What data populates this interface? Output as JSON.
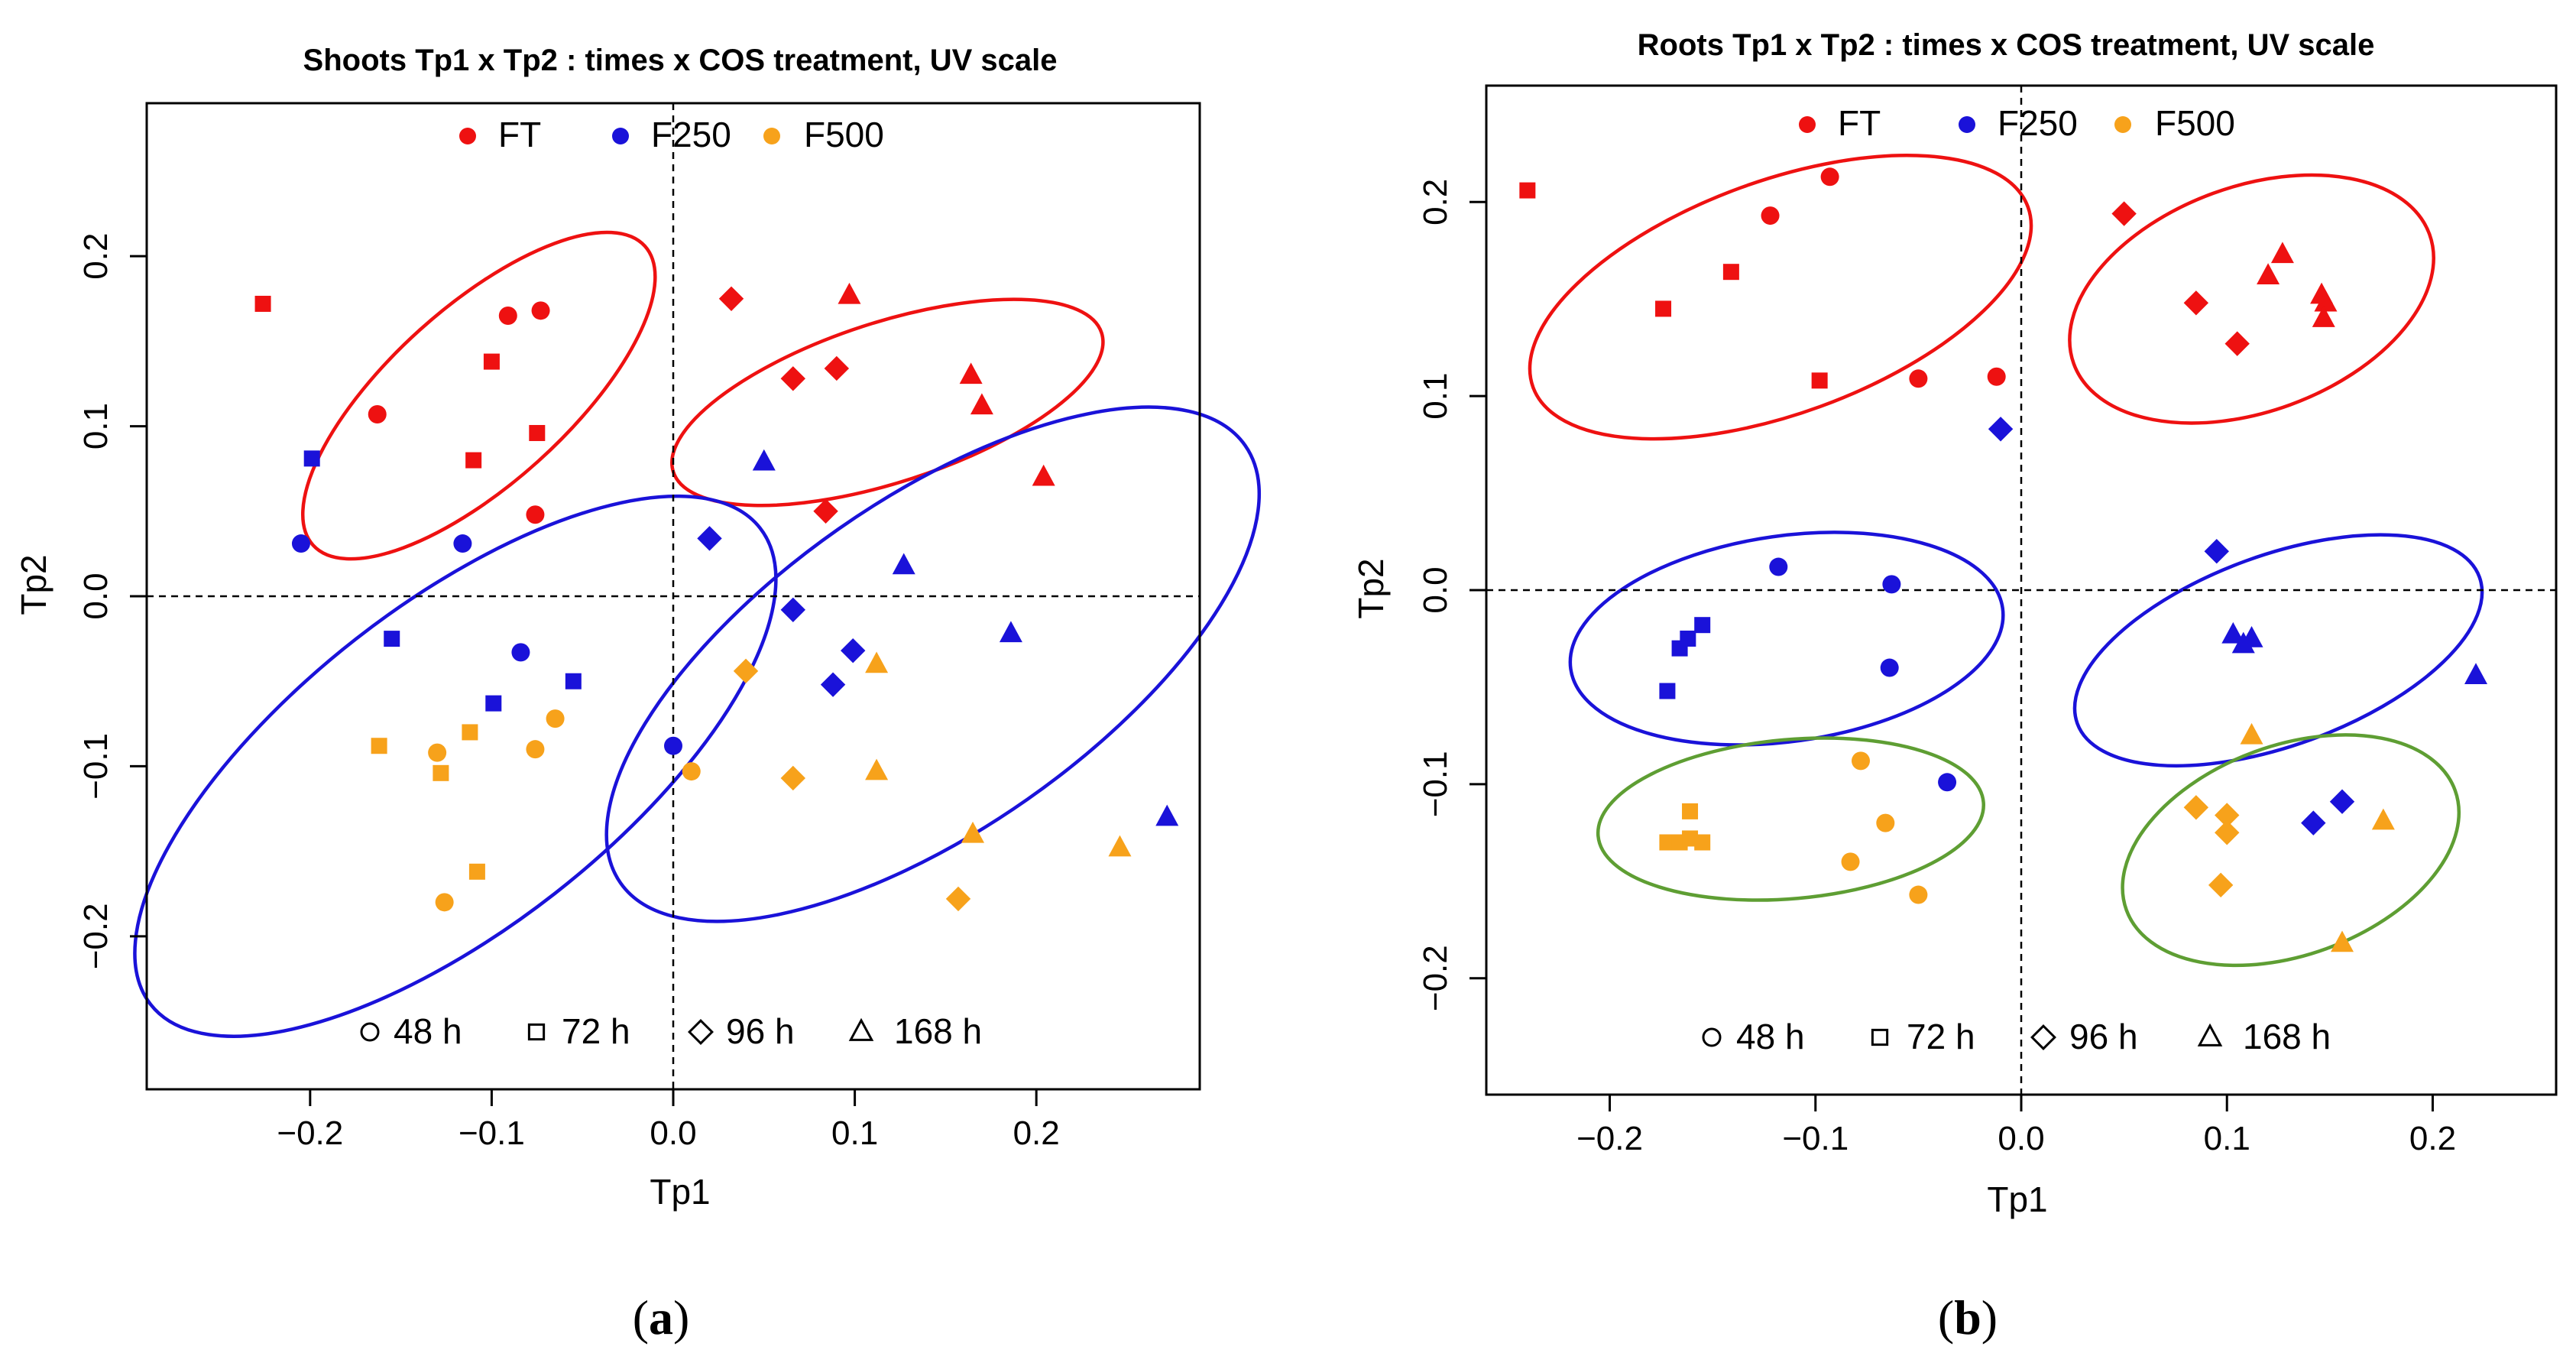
{
  "chart_data": [
    {
      "type": "scatter",
      "title": "Shoots Tp1 x Tp2 : times x COS treatment, UV scale",
      "xlabel": "Tp1",
      "ylabel": "Tp2",
      "xlim": [
        -0.29,
        0.29
      ],
      "ylim": [
        -0.29,
        0.29
      ],
      "xticks": [
        -0.2,
        -0.1,
        0.0,
        0.1,
        0.2
      ],
      "xtick_labels": [
        "−0.2",
        "−0.1",
        "0.0",
        "0.1",
        "0.2"
      ],
      "yticks": [
        -0.2,
        -0.1,
        0.0,
        0.1,
        0.2
      ],
      "ytick_labels": [
        "−0.2",
        "−0.1",
        "0.0",
        "0.1",
        "0.2"
      ],
      "caption_open": "(",
      "caption_letter": "a",
      "caption_close": ")",
      "ellipses": [
        {
          "cx": -0.107,
          "cy": 0.118,
          "rx": 0.123,
          "ry": 0.052,
          "angle": -42,
          "color": "#ee1111"
        },
        {
          "cx": 0.118,
          "cy": 0.114,
          "rx": 0.124,
          "ry": 0.047,
          "angle": -18,
          "color": "#ee1111"
        },
        {
          "cx": -0.12,
          "cy": -0.1,
          "rx": 0.213,
          "ry": 0.095,
          "angle": -38,
          "color": "#1a12d9"
        },
        {
          "cx": 0.143,
          "cy": -0.04,
          "rx": 0.21,
          "ry": 0.097,
          "angle": -35,
          "color": "#1a12d9"
        }
      ],
      "series": [
        {
          "name": "FT",
          "color": "#ee1111",
          "points": [
            {
              "x": -0.226,
              "y": 0.172,
              "s": "square"
            },
            {
              "x": -0.163,
              "y": 0.107,
              "s": "circle"
            },
            {
              "x": -0.091,
              "y": 0.165,
              "s": "circle"
            },
            {
              "x": -0.073,
              "y": 0.168,
              "s": "circle"
            },
            {
              "x": -0.1,
              "y": 0.138,
              "s": "square"
            },
            {
              "x": -0.11,
              "y": 0.08,
              "s": "square"
            },
            {
              "x": -0.075,
              "y": 0.096,
              "s": "square"
            },
            {
              "x": -0.076,
              "y": 0.048,
              "s": "circle"
            },
            {
              "x": 0.032,
              "y": 0.175,
              "s": "diamond"
            },
            {
              "x": 0.097,
              "y": 0.177,
              "s": "triangle"
            },
            {
              "x": 0.066,
              "y": 0.128,
              "s": "diamond"
            },
            {
              "x": 0.09,
              "y": 0.134,
              "s": "diamond"
            },
            {
              "x": 0.164,
              "y": 0.13,
              "s": "triangle"
            },
            {
              "x": 0.17,
              "y": 0.112,
              "s": "triangle"
            },
            {
              "x": 0.204,
              "y": 0.07,
              "s": "triangle"
            },
            {
              "x": 0.084,
              "y": 0.05,
              "s": "diamond"
            }
          ]
        },
        {
          "name": "F250",
          "color": "#1a12d9",
          "points": [
            {
              "x": -0.199,
              "y": 0.081,
              "s": "square"
            },
            {
              "x": -0.205,
              "y": 0.031,
              "s": "circle"
            },
            {
              "x": -0.116,
              "y": 0.031,
              "s": "circle"
            },
            {
              "x": -0.155,
              "y": -0.025,
              "s": "square"
            },
            {
              "x": -0.084,
              "y": -0.033,
              "s": "circle"
            },
            {
              "x": -0.055,
              "y": -0.05,
              "s": "square"
            },
            {
              "x": -0.099,
              "y": -0.063,
              "s": "square"
            },
            {
              "x": 0.0,
              "y": -0.088,
              "s": "circle"
            },
            {
              "x": 0.05,
              "y": 0.079,
              "s": "triangle"
            },
            {
              "x": 0.02,
              "y": 0.034,
              "s": "diamond"
            },
            {
              "x": 0.066,
              "y": -0.008,
              "s": "diamond"
            },
            {
              "x": 0.127,
              "y": 0.018,
              "s": "triangle"
            },
            {
              "x": 0.099,
              "y": -0.032,
              "s": "diamond"
            },
            {
              "x": 0.088,
              "y": -0.052,
              "s": "diamond"
            },
            {
              "x": 0.186,
              "y": -0.022,
              "s": "triangle"
            },
            {
              "x": 0.272,
              "y": -0.13,
              "s": "triangle"
            }
          ]
        },
        {
          "name": "F500",
          "color": "#f7a21b",
          "points": [
            {
              "x": -0.162,
              "y": -0.088,
              "s": "square"
            },
            {
              "x": -0.13,
              "y": -0.092,
              "s": "circle"
            },
            {
              "x": -0.112,
              "y": -0.08,
              "s": "square"
            },
            {
              "x": -0.128,
              "y": -0.104,
              "s": "square"
            },
            {
              "x": -0.076,
              "y": -0.09,
              "s": "circle"
            },
            {
              "x": -0.065,
              "y": -0.072,
              "s": "circle"
            },
            {
              "x": -0.108,
              "y": -0.162,
              "s": "square"
            },
            {
              "x": -0.126,
              "y": -0.18,
              "s": "circle"
            },
            {
              "x": 0.01,
              "y": -0.103,
              "s": "circle"
            },
            {
              "x": 0.04,
              "y": -0.044,
              "s": "diamond"
            },
            {
              "x": 0.112,
              "y": -0.04,
              "s": "triangle"
            },
            {
              "x": 0.066,
              "y": -0.107,
              "s": "diamond"
            },
            {
              "x": 0.112,
              "y": -0.103,
              "s": "triangle"
            },
            {
              "x": 0.165,
              "y": -0.14,
              "s": "triangle"
            },
            {
              "x": 0.157,
              "y": -0.178,
              "s": "diamond"
            },
            {
              "x": 0.246,
              "y": -0.148,
              "s": "triangle"
            }
          ]
        }
      ]
    },
    {
      "type": "scatter",
      "title": "Roots Tp1 x Tp2 : times x COS treatment, UV scale",
      "xlabel": "Tp1",
      "ylabel": "Tp2",
      "xlim": [
        -0.26,
        0.26
      ],
      "ylim": [
        -0.26,
        0.26
      ],
      "xticks": [
        -0.2,
        -0.1,
        0.0,
        0.1,
        0.2
      ],
      "xtick_labels": [
        "−0.2",
        "−0.1",
        "0.0",
        "0.1",
        "0.2"
      ],
      "yticks": [
        -0.2,
        -0.1,
        0.0,
        0.1,
        0.2
      ],
      "ytick_labels": [
        "−0.2",
        "−0.1",
        "0.0",
        "0.1",
        "0.2"
      ],
      "caption_open": "(",
      "caption_letter": "b",
      "caption_close": ")",
      "ellipses": [
        {
          "cx": -0.117,
          "cy": 0.151,
          "rx": 0.128,
          "ry": 0.06,
          "angle": -20,
          "color": "#ee1111"
        },
        {
          "cx": 0.112,
          "cy": 0.15,
          "rx": 0.092,
          "ry": 0.058,
          "angle": -20,
          "color": "#ee1111"
        },
        {
          "cx": -0.114,
          "cy": -0.025,
          "rx": 0.106,
          "ry": 0.053,
          "angle": -8,
          "color": "#1a12d9"
        },
        {
          "cx": 0.125,
          "cy": -0.031,
          "rx": 0.104,
          "ry": 0.049,
          "angle": -20,
          "color": "#1a12d9"
        },
        {
          "cx": -0.112,
          "cy": -0.118,
          "rx": 0.094,
          "ry": 0.041,
          "angle": -5,
          "color": "#5e9e33"
        },
        {
          "cx": 0.131,
          "cy": -0.134,
          "rx": 0.085,
          "ry": 0.054,
          "angle": -20,
          "color": "#5e9e33"
        }
      ],
      "series": [
        {
          "name": "FT",
          "color": "#ee1111",
          "points": [
            {
              "x": -0.24,
              "y": 0.206,
              "s": "square"
            },
            {
              "x": -0.093,
              "y": 0.213,
              "s": "circle"
            },
            {
              "x": -0.122,
              "y": 0.193,
              "s": "circle"
            },
            {
              "x": -0.141,
              "y": 0.164,
              "s": "square"
            },
            {
              "x": -0.174,
              "y": 0.145,
              "s": "square"
            },
            {
              "x": -0.098,
              "y": 0.108,
              "s": "square"
            },
            {
              "x": -0.05,
              "y": 0.109,
              "s": "circle"
            },
            {
              "x": -0.012,
              "y": 0.11,
              "s": "circle"
            },
            {
              "x": 0.05,
              "y": 0.194,
              "s": "diamond"
            },
            {
              "x": 0.127,
              "y": 0.173,
              "s": "triangle"
            },
            {
              "x": 0.12,
              "y": 0.162,
              "s": "triangle"
            },
            {
              "x": 0.146,
              "y": 0.152,
              "s": "triangle"
            },
            {
              "x": 0.148,
              "y": 0.148,
              "s": "triangle"
            },
            {
              "x": 0.147,
              "y": 0.14,
              "s": "triangle"
            },
            {
              "x": 0.085,
              "y": 0.148,
              "s": "diamond"
            },
            {
              "x": 0.105,
              "y": 0.127,
              "s": "diamond"
            }
          ]
        },
        {
          "name": "F250",
          "color": "#1a12d9",
          "points": [
            {
              "x": -0.01,
              "y": 0.083,
              "s": "diamond"
            },
            {
              "x": -0.118,
              "y": 0.012,
              "s": "circle"
            },
            {
              "x": -0.063,
              "y": 0.003,
              "s": "circle"
            },
            {
              "x": -0.155,
              "y": -0.018,
              "s": "square"
            },
            {
              "x": -0.162,
              "y": -0.025,
              "s": "square"
            },
            {
              "x": -0.166,
              "y": -0.03,
              "s": "square"
            },
            {
              "x": -0.172,
              "y": -0.052,
              "s": "square"
            },
            {
              "x": -0.064,
              "y": -0.04,
              "s": "circle"
            },
            {
              "x": -0.036,
              "y": -0.099,
              "s": "circle"
            },
            {
              "x": 0.095,
              "y": 0.02,
              "s": "diamond"
            },
            {
              "x": 0.103,
              "y": -0.023,
              "s": "triangle"
            },
            {
              "x": 0.108,
              "y": -0.028,
              "s": "triangle"
            },
            {
              "x": 0.112,
              "y": -0.025,
              "s": "triangle"
            },
            {
              "x": 0.221,
              "y": -0.044,
              "s": "triangle"
            },
            {
              "x": 0.142,
              "y": -0.12,
              "s": "diamond"
            },
            {
              "x": 0.156,
              "y": -0.109,
              "s": "diamond"
            }
          ]
        },
        {
          "name": "F500",
          "color": "#f7a21b",
          "points": [
            {
              "x": -0.078,
              "y": -0.088,
              "s": "circle"
            },
            {
              "x": -0.066,
              "y": -0.12,
              "s": "circle"
            },
            {
              "x": -0.083,
              "y": -0.14,
              "s": "circle"
            },
            {
              "x": -0.05,
              "y": -0.157,
              "s": "circle"
            },
            {
              "x": -0.161,
              "y": -0.114,
              "s": "square"
            },
            {
              "x": -0.172,
              "y": -0.13,
              "s": "square"
            },
            {
              "x": -0.166,
              "y": -0.13,
              "s": "square"
            },
            {
              "x": -0.161,
              "y": -0.128,
              "s": "square"
            },
            {
              "x": -0.155,
              "y": -0.13,
              "s": "square"
            },
            {
              "x": 0.112,
              "y": -0.075,
              "s": "triangle"
            },
            {
              "x": 0.085,
              "y": -0.112,
              "s": "diamond"
            },
            {
              "x": 0.1,
              "y": -0.116,
              "s": "diamond"
            },
            {
              "x": 0.1,
              "y": -0.125,
              "s": "diamond"
            },
            {
              "x": 0.097,
              "y": -0.152,
              "s": "diamond"
            },
            {
              "x": 0.176,
              "y": -0.119,
              "s": "triangle"
            },
            {
              "x": 0.156,
              "y": -0.182,
              "s": "triangle"
            }
          ]
        }
      ]
    }
  ],
  "legend": {
    "groups": [
      {
        "label": "FT",
        "color": "#ee1111"
      },
      {
        "label": "F250",
        "color": "#1a12d9"
      },
      {
        "label": "F500",
        "color": "#f7a21b"
      }
    ],
    "times": [
      {
        "label": "48 h",
        "shape": "circle"
      },
      {
        "label": "72 h",
        "shape": "square"
      },
      {
        "label": "96 h",
        "shape": "diamond"
      },
      {
        "label": "168 h",
        "shape": "triangle"
      }
    ]
  }
}
